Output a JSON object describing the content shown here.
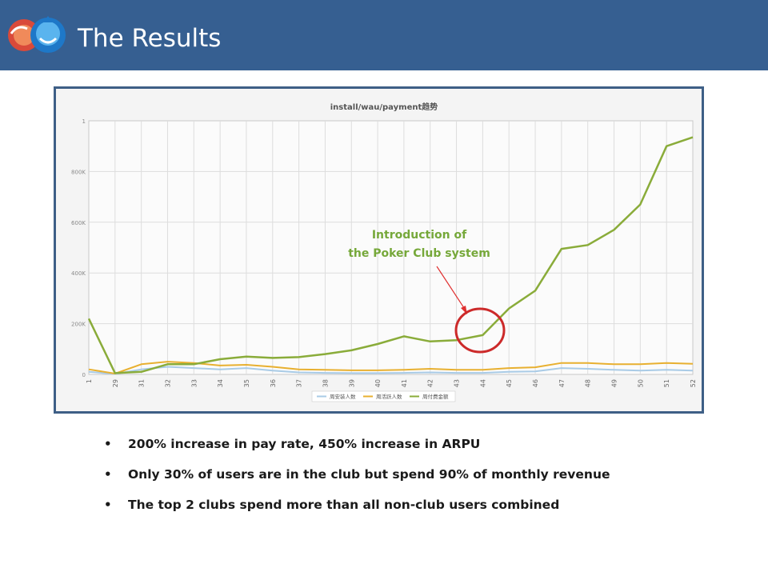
{
  "header": {
    "title": "The Results"
  },
  "chart_data": {
    "type": "line",
    "title": "install/wau/payment趋势",
    "categories": [
      "1",
      "29",
      "31",
      "32",
      "33",
      "34",
      "35",
      "36",
      "37",
      "38",
      "39",
      "40",
      "41",
      "42",
      "43",
      "44",
      "45",
      "46",
      "47",
      "48",
      "49",
      "50",
      "51",
      "52"
    ],
    "yticks": [
      "1",
      "800K",
      "600K",
      "400K",
      "200K",
      "0"
    ],
    "ylim": [
      0,
      1000
    ],
    "grid": true,
    "legend_position": "bottom",
    "series": [
      {
        "name": "周安装人数",
        "color": "#a9cbe6",
        "values": [
          10,
          2,
          20,
          30,
          25,
          20,
          25,
          15,
          8,
          6,
          5,
          5,
          6,
          8,
          6,
          6,
          10,
          12,
          25,
          22,
          18,
          15,
          18,
          15
        ]
      },
      {
        "name": "周活跃人数",
        "color": "#e8b030",
        "values": [
          20,
          3,
          40,
          50,
          45,
          35,
          38,
          30,
          20,
          18,
          16,
          16,
          18,
          22,
          18,
          18,
          25,
          28,
          45,
          45,
          40,
          40,
          45,
          42
        ]
      },
      {
        "name": "周付费金额",
        "color": "#8aac3a",
        "values": [
          220,
          5,
          10,
          40,
          40,
          60,
          70,
          65,
          68,
          80,
          95,
          120,
          150,
          130,
          135,
          155,
          260,
          330,
          495,
          510,
          570,
          670,
          900,
          935
        ]
      }
    ],
    "annotation": {
      "text_line1": "Introduction of",
      "text_line2": "the Poker Club system",
      "color": "#76a83a"
    }
  },
  "bullets": [
    "200% increase in pay rate, 450% increase in ARPU",
    "Only 30% of users are in the club but spend 90% of monthly revenue",
    "The top 2 clubs spend more than all non-club users combined"
  ]
}
